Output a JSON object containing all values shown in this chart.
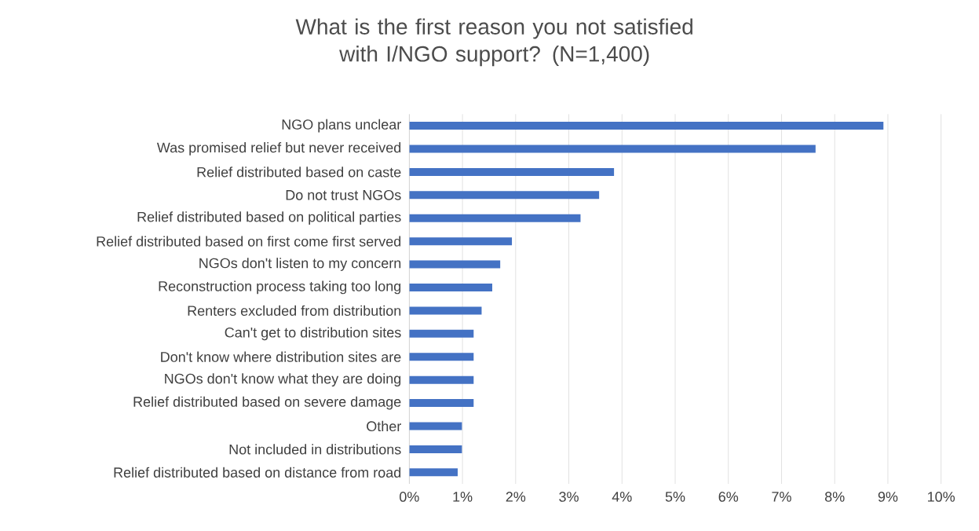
{
  "chart_data": {
    "type": "bar",
    "orientation": "horizontal",
    "title": "What is the first reason you not satisfied with I/NGO support? (N=1,400)",
    "categories": [
      "NGO plans unclear",
      "Was promised relief but never received",
      "Relief distributed based on caste",
      "Do not trust NGOs",
      "Relief distributed based on political parties",
      "Relief distributed based on first come first served",
      "NGOs don't listen to my concern",
      "Reconstruction process taking too long",
      "Renters excluded from distribution",
      "Can't get to distribution sites",
      "Don't know where distribution sites are",
      "NGOs don't know what they are doing",
      "Relief distributed based on severe damage",
      "Other",
      "Not included in distributions",
      "Relief distributed based on distance from road"
    ],
    "values": [
      8.92,
      7.64,
      3.85,
      3.57,
      3.22,
      1.93,
      1.71,
      1.56,
      1.36,
      1.21,
      1.21,
      1.21,
      1.21,
      0.99,
      0.99,
      0.91
    ],
    "color": "#4472c4",
    "xlim": [
      0,
      10
    ],
    "xticks": [
      {
        "value": 0,
        "label": "0%"
      },
      {
        "value": 1,
        "label": "1%"
      },
      {
        "value": 2,
        "label": "2%"
      },
      {
        "value": 3,
        "label": "3%"
      },
      {
        "value": 4,
        "label": "4%"
      },
      {
        "value": 5,
        "label": "5%"
      },
      {
        "value": 6,
        "label": "6%"
      },
      {
        "value": 7,
        "label": "7%"
      },
      {
        "value": 8,
        "label": "8%"
      },
      {
        "value": 9,
        "label": "9%"
      },
      {
        "value": 10,
        "label": "10%"
      }
    ],
    "grid": "x"
  }
}
